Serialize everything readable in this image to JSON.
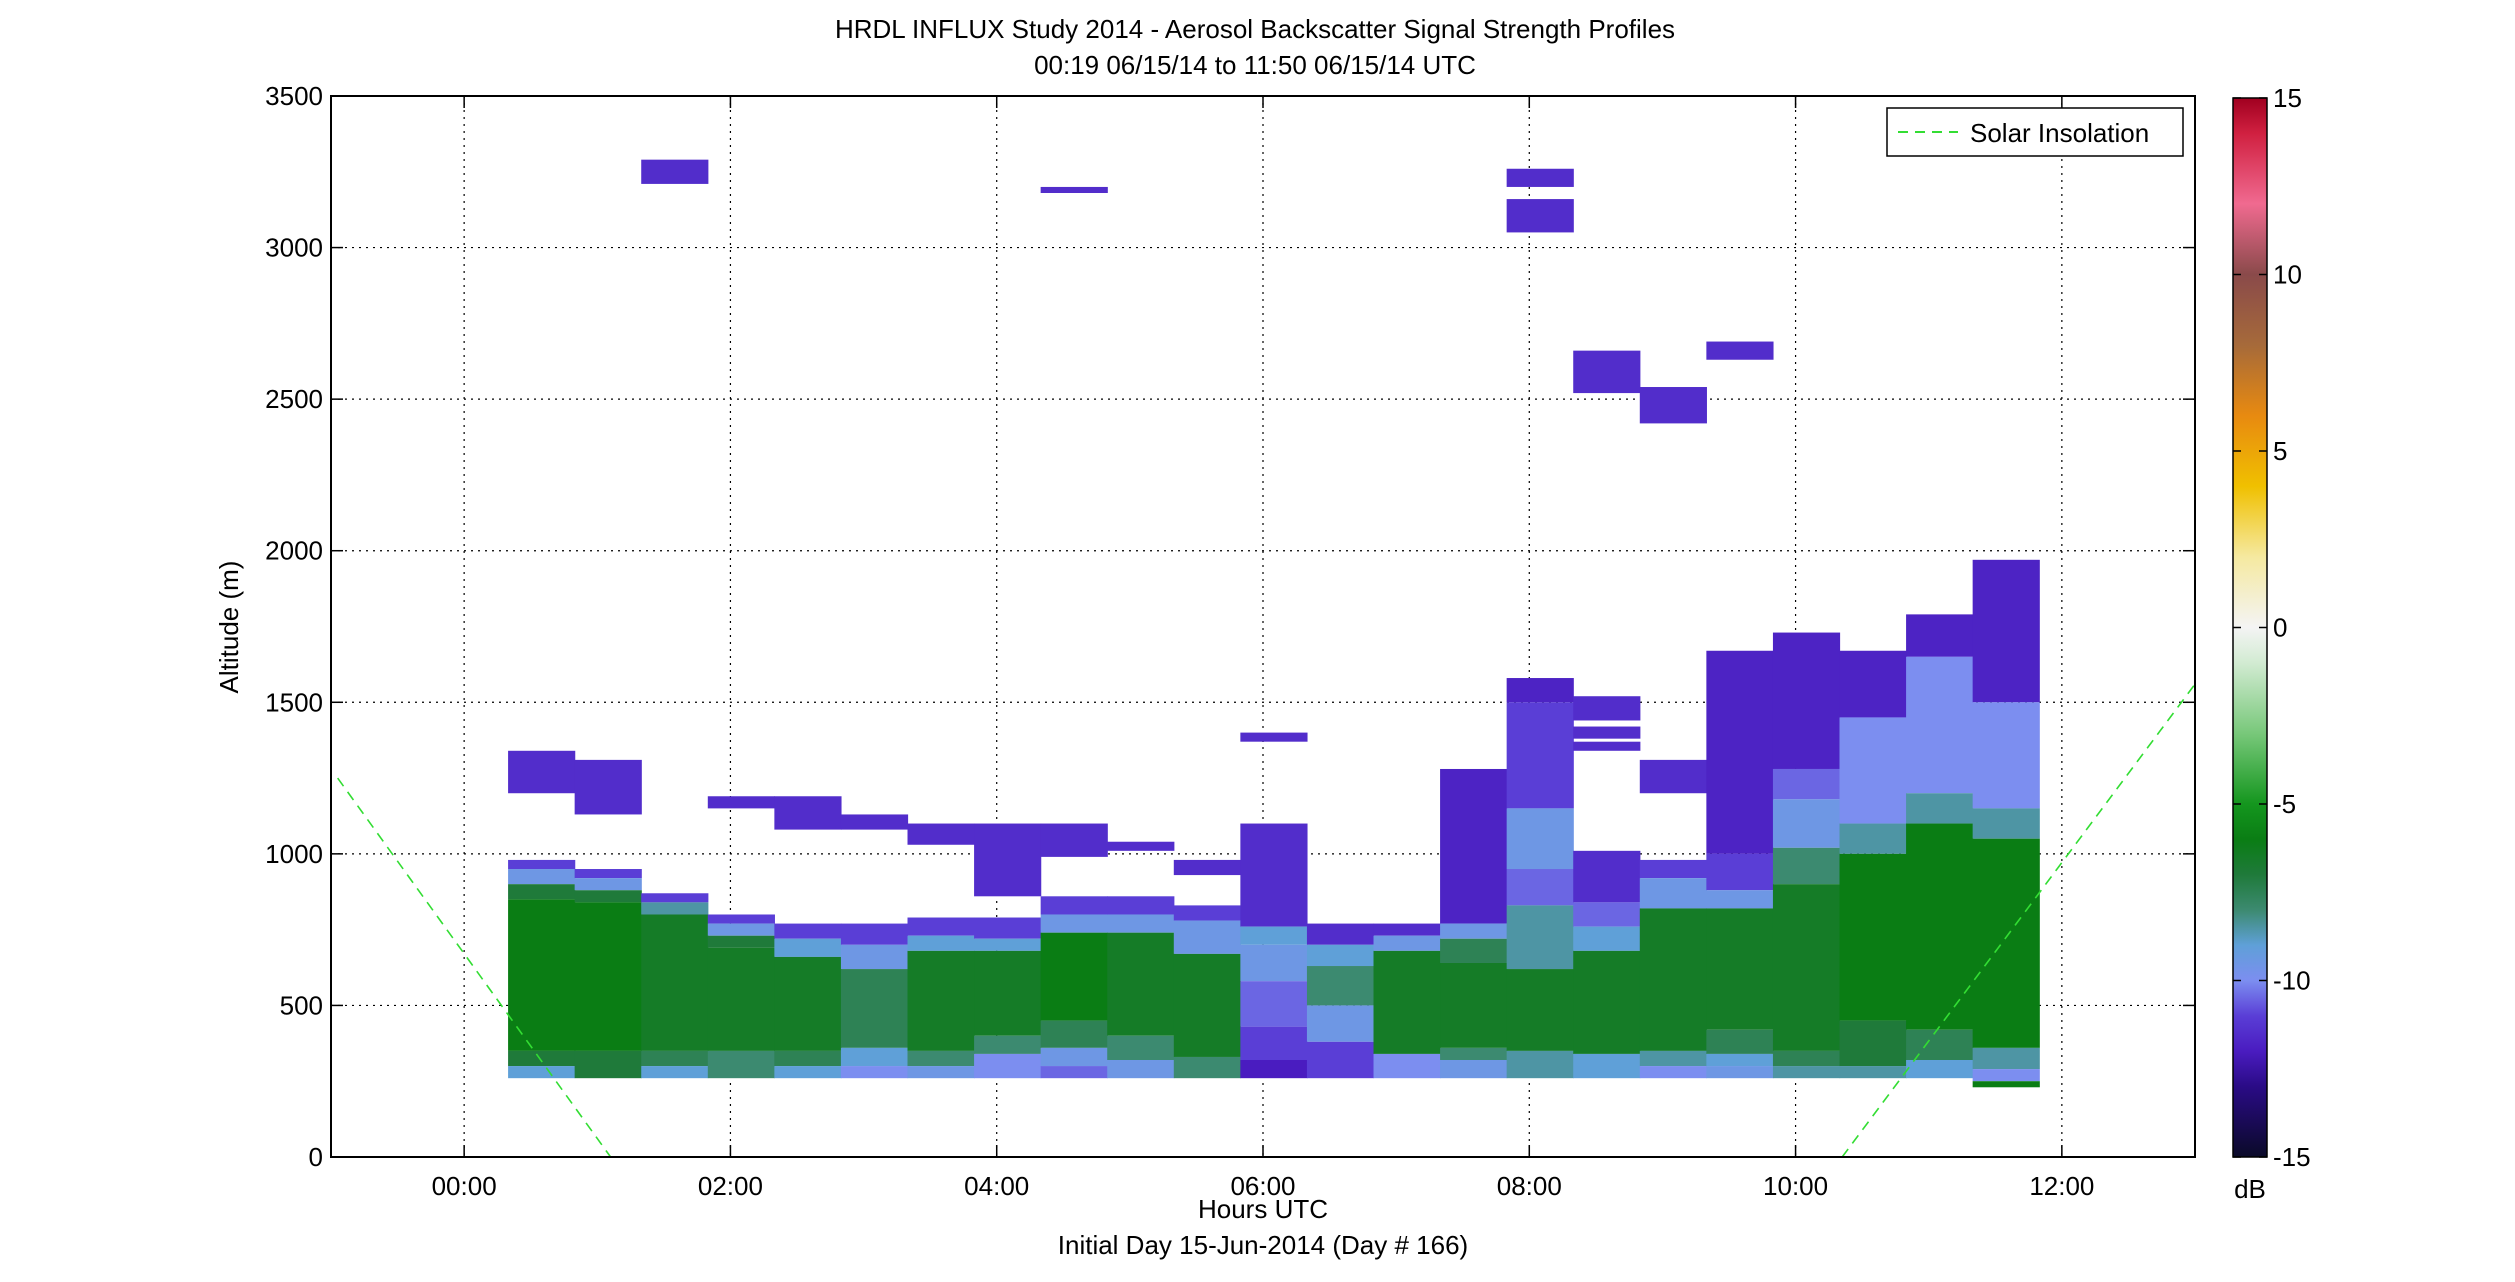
{
  "chart_data": {
    "type": "heatmap",
    "title": "HRDL INFLUX Study 2014 - Aerosol Backscatter Signal Strength Profiles",
    "subtitle": "00:19 06/15/14 to 11:50 06/15/14  UTC",
    "xlabel": "Hours UTC",
    "xlabel2": "Initial Day 15-Jun-2014 (Day # 166)",
    "ylabel": "Altitude (m)",
    "xlim": [
      -1.0,
      13.0
    ],
    "ylim": [
      0,
      3500
    ],
    "x_ticks": [
      0,
      2,
      4,
      6,
      8,
      10,
      12
    ],
    "x_tick_labels": [
      "00:00",
      "02:00",
      "04:00",
      "06:00",
      "08:00",
      "10:00",
      "12:00"
    ],
    "y_ticks": [
      0,
      500,
      1000,
      1500,
      2000,
      2500,
      3000,
      3500
    ],
    "y_tick_labels": [
      "0",
      "500",
      "1000",
      "1500",
      "2000",
      "2500",
      "3000",
      "3500"
    ],
    "grid": true,
    "legend": {
      "entries": [
        "Solar Insolation"
      ],
      "placement": "top-right"
    },
    "colorbar": {
      "label": "dB",
      "range": [
        -15,
        15
      ],
      "ticks": [
        -15,
        -10,
        -5,
        0,
        5,
        10,
        15
      ],
      "tick_labels": [
        "-15",
        "-10",
        "-5",
        "0",
        "5",
        "10",
        "15"
      ]
    },
    "column_width_hours": 0.5,
    "columns": [
      {
        "t": 0.33,
        "cells": [
          [
            1200,
            1340,
            -11.5
          ],
          [
            950,
            980,
            -11
          ],
          [
            900,
            950,
            -9.5
          ],
          [
            850,
            900,
            -7
          ],
          [
            350,
            850,
            -6
          ],
          [
            300,
            350,
            -7
          ],
          [
            260,
            300,
            -9
          ]
        ]
      },
      {
        "t": 0.83,
        "cells": [
          [
            1130,
            1310,
            -11.5
          ],
          [
            920,
            950,
            -11
          ],
          [
            880,
            920,
            -9.5
          ],
          [
            840,
            880,
            -7
          ],
          [
            350,
            840,
            -6
          ],
          [
            260,
            350,
            -7
          ]
        ]
      },
      {
        "t": 1.33,
        "cells": [
          [
            3210,
            3290,
            -11.5
          ],
          [
            840,
            870,
            -11
          ],
          [
            800,
            840,
            -8.5
          ],
          [
            350,
            800,
            -6.5
          ],
          [
            300,
            350,
            -7.5
          ],
          [
            260,
            300,
            -9
          ]
        ]
      },
      {
        "t": 1.83,
        "cells": [
          [
            1150,
            1190,
            -11.5
          ],
          [
            770,
            800,
            -11
          ],
          [
            730,
            770,
            -9.5
          ],
          [
            690,
            730,
            -7
          ],
          [
            350,
            690,
            -6.5
          ],
          [
            260,
            350,
            -8
          ]
        ]
      },
      {
        "t": 2.33,
        "cells": [
          [
            1080,
            1190,
            -11.5
          ],
          [
            720,
            770,
            -11
          ],
          [
            660,
            720,
            -9
          ],
          [
            350,
            660,
            -6.5
          ],
          [
            300,
            350,
            -7.5
          ],
          [
            260,
            300,
            -9
          ]
        ]
      },
      {
        "t": 2.83,
        "cells": [
          [
            1080,
            1130,
            -11.5
          ],
          [
            700,
            770,
            -11
          ],
          [
            620,
            700,
            -9.5
          ],
          [
            360,
            620,
            -7.5
          ],
          [
            300,
            360,
            -9
          ],
          [
            260,
            300,
            -10
          ]
        ]
      },
      {
        "t": 3.33,
        "cells": [
          [
            1030,
            1100,
            -11.5
          ],
          [
            730,
            790,
            -11
          ],
          [
            680,
            730,
            -9
          ],
          [
            350,
            680,
            -6.5
          ],
          [
            300,
            350,
            -8
          ],
          [
            260,
            300,
            -9.5
          ]
        ]
      },
      {
        "t": 3.83,
        "cells": [
          [
            860,
            1100,
            -11.5
          ],
          [
            720,
            790,
            -11
          ],
          [
            680,
            720,
            -9
          ],
          [
            400,
            680,
            -6.5
          ],
          [
            340,
            400,
            -8
          ],
          [
            260,
            340,
            -10
          ]
        ]
      },
      {
        "t": 4.33,
        "cells": [
          [
            3180,
            3200,
            -11.5
          ],
          [
            990,
            1100,
            -11.5
          ],
          [
            800,
            860,
            -11
          ],
          [
            740,
            800,
            -9.5
          ],
          [
            450,
            740,
            -6
          ],
          [
            360,
            450,
            -7.5
          ],
          [
            300,
            360,
            -9.5
          ],
          [
            260,
            300,
            -10.5
          ]
        ]
      },
      {
        "t": 4.83,
        "cells": [
          [
            1010,
            1040,
            -11.5
          ],
          [
            800,
            860,
            -11
          ],
          [
            740,
            800,
            -9.5
          ],
          [
            400,
            740,
            -6.5
          ],
          [
            320,
            400,
            -8
          ],
          [
            260,
            320,
            -9.5
          ]
        ]
      },
      {
        "t": 5.33,
        "cells": [
          [
            930,
            980,
            -11.5
          ],
          [
            780,
            830,
            -11
          ],
          [
            670,
            780,
            -9.5
          ],
          [
            330,
            670,
            -6.5
          ],
          [
            260,
            330,
            -8
          ]
        ]
      },
      {
        "t": 5.83,
        "cells": [
          [
            1370,
            1400,
            -11.5
          ],
          [
            760,
            1100,
            -11.5
          ],
          [
            700,
            760,
            -9
          ],
          [
            580,
            700,
            -9.5
          ],
          [
            430,
            580,
            -10.5
          ],
          [
            320,
            430,
            -11
          ],
          [
            260,
            320,
            -12
          ]
        ]
      },
      {
        "t": 6.33,
        "cells": [
          [
            700,
            770,
            -11.5
          ],
          [
            630,
            700,
            -9
          ],
          [
            500,
            630,
            -8
          ],
          [
            380,
            500,
            -9.5
          ],
          [
            260,
            380,
            -11
          ]
        ]
      },
      {
        "t": 6.83,
        "cells": [
          [
            730,
            770,
            -11.5
          ],
          [
            680,
            730,
            -9.5
          ],
          [
            340,
            680,
            -6.5
          ],
          [
            260,
            340,
            -10
          ]
        ]
      },
      {
        "t": 7.33,
        "cells": [
          [
            770,
            1280,
            -11.8
          ],
          [
            720,
            770,
            -9.5
          ],
          [
            640,
            720,
            -7.5
          ],
          [
            360,
            640,
            -6.5
          ],
          [
            320,
            360,
            -8
          ],
          [
            260,
            320,
            -9.5
          ]
        ]
      },
      {
        "t": 7.83,
        "cells": [
          [
            3200,
            3260,
            -11.5
          ],
          [
            3050,
            3160,
            -11.5
          ],
          [
            1500,
            1580,
            -11.8
          ],
          [
            1150,
            1500,
            -11
          ],
          [
            950,
            1150,
            -9.5
          ],
          [
            830,
            950,
            -10.5
          ],
          [
            620,
            830,
            -8.5
          ],
          [
            350,
            620,
            -6.5
          ],
          [
            260,
            350,
            -8.5
          ]
        ]
      },
      {
        "t": 8.33,
        "cells": [
          [
            2520,
            2660,
            -11.5
          ],
          [
            1440,
            1520,
            -11.5
          ],
          [
            1380,
            1420,
            -11.5
          ],
          [
            1340,
            1370,
            -11.5
          ],
          [
            840,
            1010,
            -11.5
          ],
          [
            760,
            840,
            -10.5
          ],
          [
            680,
            760,
            -9
          ],
          [
            340,
            680,
            -6.5
          ],
          [
            260,
            340,
            -9
          ]
        ]
      },
      {
        "t": 8.83,
        "cells": [
          [
            2420,
            2540,
            -11.5
          ],
          [
            1200,
            1310,
            -11.5
          ],
          [
            920,
            980,
            -11
          ],
          [
            820,
            920,
            -9.5
          ],
          [
            350,
            820,
            -6.5
          ],
          [
            300,
            350,
            -8.5
          ],
          [
            260,
            300,
            -10
          ]
        ]
      },
      {
        "t": 9.33,
        "cells": [
          [
            2630,
            2690,
            -11.5
          ],
          [
            1000,
            1670,
            -11.8
          ],
          [
            880,
            1000,
            -11
          ],
          [
            820,
            880,
            -9.5
          ],
          [
            420,
            820,
            -6.5
          ],
          [
            340,
            420,
            -7.5
          ],
          [
            300,
            340,
            -9
          ],
          [
            260,
            300,
            -9.5
          ]
        ]
      },
      {
        "t": 9.83,
        "cells": [
          [
            1280,
            1730,
            -11.8
          ],
          [
            1180,
            1280,
            -10.5
          ],
          [
            1020,
            1180,
            -9.5
          ],
          [
            900,
            1020,
            -8
          ],
          [
            350,
            900,
            -6.5
          ],
          [
            300,
            350,
            -7.5
          ],
          [
            260,
            300,
            -8.5
          ]
        ]
      },
      {
        "t": 10.33,
        "cells": [
          [
            1450,
            1670,
            -11.8
          ],
          [
            1100,
            1450,
            -10
          ],
          [
            1000,
            1100,
            -8.5
          ],
          [
            450,
            1000,
            -6
          ],
          [
            300,
            450,
            -7
          ],
          [
            260,
            300,
            -8.5
          ]
        ]
      },
      {
        "t": 10.83,
        "cells": [
          [
            1650,
            1790,
            -11.8
          ],
          [
            1200,
            1650,
            -10
          ],
          [
            1100,
            1200,
            -8.5
          ],
          [
            420,
            1100,
            -6
          ],
          [
            320,
            420,
            -7.5
          ],
          [
            260,
            320,
            -9
          ]
        ]
      },
      {
        "t": 11.33,
        "cells": [
          [
            1500,
            1970,
            -11.8
          ],
          [
            1150,
            1500,
            -10
          ],
          [
            1050,
            1150,
            -8.5
          ],
          [
            360,
            1050,
            -6
          ],
          [
            290,
            360,
            -8.5
          ],
          [
            250,
            290,
            -10
          ],
          [
            230,
            250,
            -6
          ]
        ]
      }
    ],
    "solar_insolation": {
      "color": "#33dd33",
      "segments": [
        {
          "x": [
            -0.95,
            1.1
          ],
          "y": [
            1250,
            0
          ]
        },
        {
          "x": [
            10.35,
            13.0
          ],
          "y": [
            0,
            1560
          ]
        }
      ]
    },
    "colormap": [
      [
        -15,
        "#0a0a28"
      ],
      [
        -13,
        "#2a0b86"
      ],
      [
        -12,
        "#4a1cc0"
      ],
      [
        -11,
        "#5a3ed6"
      ],
      [
        -10,
        "#7c8ef0"
      ],
      [
        -9,
        "#5fa0d8"
      ],
      [
        -8,
        "#3c8a70"
      ],
      [
        -7,
        "#1f7a3a"
      ],
      [
        -6,
        "#0a7d14"
      ],
      [
        -5,
        "#14961e"
      ],
      [
        -3,
        "#78c87a"
      ],
      [
        -1,
        "#d2ebd2"
      ],
      [
        0,
        "#f4f4f4"
      ],
      [
        2,
        "#f5e9a0"
      ],
      [
        4,
        "#f0c000"
      ],
      [
        6,
        "#e88a10"
      ],
      [
        8,
        "#a66a3a"
      ],
      [
        10,
        "#8a4a4a"
      ],
      [
        12,
        "#f06a90"
      ],
      [
        14,
        "#d02040"
      ],
      [
        15,
        "#a00020"
      ]
    ]
  }
}
